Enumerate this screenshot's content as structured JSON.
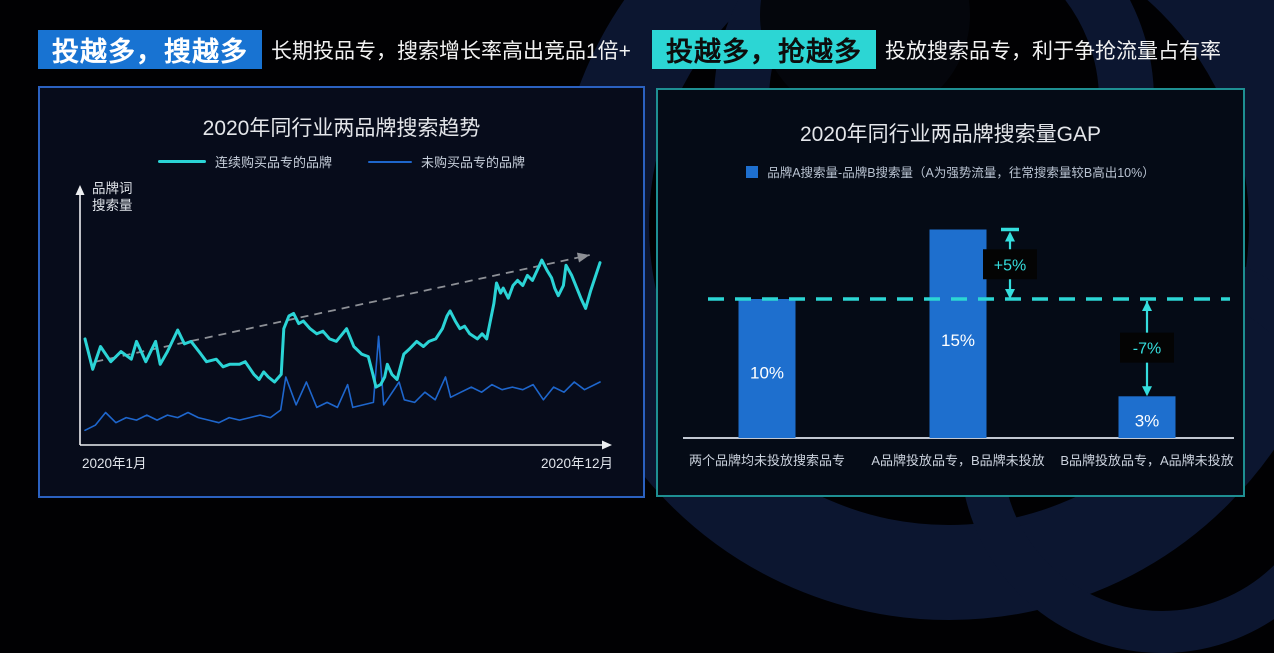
{
  "headers": {
    "left": {
      "badge": "投越多，搜越多",
      "badge_bg": "#1873d2",
      "badge_color": "#ffffff",
      "desc": "长期投品专，搜索增长率高出竞品1倍+"
    },
    "right": {
      "badge": "投越多，抢越多",
      "badge_bg": "#2cd6d4",
      "badge_color": "#0d0d0d",
      "desc": "投放搜索品专，利于争抢流量占有率"
    }
  },
  "chart_data": [
    {
      "type": "line",
      "title": "2020年同行业两品牌搜索趋势",
      "ylabel": "品牌词\n搜索量",
      "xlabel_start": "2020年1月",
      "xlabel_end": "2020年12月",
      "x_range": "2020年1月 — 2020年12月",
      "grid": false,
      "legend_position": "top",
      "series": [
        {
          "name": "连续购买品专的品牌",
          "color": "#2bd4d6",
          "width": 3,
          "points": [
            [
              0,
              41
            ],
            [
              1.5,
              29
            ],
            [
              3,
              38
            ],
            [
              5,
              32
            ],
            [
              7,
              36
            ],
            [
              9,
              33
            ],
            [
              10,
              40
            ],
            [
              11.8,
              32
            ],
            [
              13.7,
              40
            ],
            [
              14.6,
              31
            ],
            [
              16,
              36
            ],
            [
              18,
              44.5
            ],
            [
              19.3,
              39
            ],
            [
              20.6,
              40
            ],
            [
              22.5,
              35
            ],
            [
              23.6,
              32
            ],
            [
              25.5,
              33
            ],
            [
              26.8,
              30
            ],
            [
              28.1,
              31
            ],
            [
              30,
              31
            ],
            [
              31.1,
              32
            ],
            [
              32.8,
              27
            ],
            [
              33.8,
              25
            ],
            [
              34.7,
              28
            ],
            [
              35.6,
              26
            ],
            [
              36.8,
              24
            ],
            [
              38.1,
              27
            ],
            [
              38.6,
              45
            ],
            [
              39.6,
              50
            ],
            [
              40.5,
              51
            ],
            [
              41.5,
              47
            ],
            [
              42.4,
              48
            ],
            [
              43.7,
              45
            ],
            [
              45,
              43
            ],
            [
              46.2,
              44
            ],
            [
              47.5,
              41
            ],
            [
              48.8,
              40
            ],
            [
              50,
              43
            ],
            [
              50.8,
              45
            ],
            [
              52.2,
              38
            ],
            [
              53.7,
              35
            ],
            [
              55,
              34
            ],
            [
              55.9,
              27
            ],
            [
              56.5,
              22
            ],
            [
              57.4,
              23
            ],
            [
              58.2,
              26
            ],
            [
              58.7,
              31
            ],
            [
              59.6,
              27
            ],
            [
              60.6,
              25
            ],
            [
              61.9,
              35
            ],
            [
              63,
              37
            ],
            [
              64.4,
              40
            ],
            [
              65.7,
              38
            ],
            [
              66.8,
              40
            ],
            [
              68.1,
              41
            ],
            [
              69.4,
              45
            ],
            [
              70.3,
              50
            ],
            [
              70.9,
              52
            ],
            [
              71.9,
              48
            ],
            [
              72.8,
              45
            ],
            [
              73.7,
              46
            ],
            [
              74.7,
              43
            ],
            [
              76.2,
              41
            ],
            [
              77.1,
              43
            ],
            [
              78,
              41
            ],
            [
              79.4,
              55
            ],
            [
              79.9,
              63
            ],
            [
              80.7,
              59
            ],
            [
              81.2,
              61
            ],
            [
              82.2,
              57
            ],
            [
              83.1,
              62
            ],
            [
              84,
              64
            ],
            [
              85,
              62
            ],
            [
              85.9,
              66
            ],
            [
              86.9,
              64
            ],
            [
              87.8,
              68
            ],
            [
              88.7,
              72
            ],
            [
              89.7,
              68
            ],
            [
              90.6,
              65
            ],
            [
              91.2,
              61
            ],
            [
              91.9,
              58
            ],
            [
              92.9,
              62
            ],
            [
              93.4,
              70
            ],
            [
              94.5,
              66
            ],
            [
              95.5,
              61
            ],
            [
              96.3,
              57
            ],
            [
              97.2,
              53
            ],
            [
              98.2,
              60
            ],
            [
              100,
              71
            ]
          ]
        },
        {
          "name": "未购买品专的品牌",
          "color": "#1e66cc",
          "width": 1.6,
          "points": [
            [
              0,
              5
            ],
            [
              2,
              7
            ],
            [
              4,
              12
            ],
            [
              6,
              8
            ],
            [
              8,
              10
            ],
            [
              10,
              9
            ],
            [
              12,
              11
            ],
            [
              14,
              9
            ],
            [
              16,
              11
            ],
            [
              18,
              10
            ],
            [
              20,
              12
            ],
            [
              22,
              10
            ],
            [
              24,
              9
            ],
            [
              26,
              8
            ],
            [
              28,
              10
            ],
            [
              30,
              9
            ],
            [
              32,
              10
            ],
            [
              34,
              11
            ],
            [
              36,
              10
            ],
            [
              38,
              13
            ],
            [
              39,
              26
            ],
            [
              41,
              15
            ],
            [
              43,
              24
            ],
            [
              45,
              14
            ],
            [
              47,
              16
            ],
            [
              49,
              14
            ],
            [
              51,
              23
            ],
            [
              52,
              14
            ],
            [
              54,
              15
            ],
            [
              56,
              16
            ],
            [
              57,
              42
            ],
            [
              58,
              15
            ],
            [
              59,
              18
            ],
            [
              61,
              24
            ],
            [
              62,
              17
            ],
            [
              64,
              16
            ],
            [
              66,
              20
            ],
            [
              68,
              17
            ],
            [
              70,
              26
            ],
            [
              71,
              18
            ],
            [
              73,
              20
            ],
            [
              75,
              22
            ],
            [
              77,
              20
            ],
            [
              79,
              23
            ],
            [
              81,
              21
            ],
            [
              83,
              22
            ],
            [
              85,
              21
            ],
            [
              87,
              23
            ],
            [
              89,
              17
            ],
            [
              91,
              22
            ],
            [
              93,
              20
            ],
            [
              95,
              24
            ],
            [
              97,
              21
            ],
            [
              100,
              24
            ]
          ]
        }
      ],
      "trend_arrow": {
        "from": [
          2,
          32
        ],
        "to": [
          98,
          74
        ],
        "color": "#8d9096",
        "style": "dashed"
      }
    },
    {
      "type": "bar",
      "title": "2020年同行业两品牌搜索量GAP",
      "legend": "品牌A搜索量-品牌B搜索量（A为强势流量，往常搜索量较B高出10%）",
      "categories": [
        "两个品牌均未投放搜索品专",
        "A品牌投放品专，B品牌未投放",
        "B品牌投放品专，A品牌未投放"
      ],
      "values": [
        10,
        15,
        3
      ],
      "labels": [
        "10%",
        "15%",
        "3%"
      ],
      "bar_color": "#1e6fce",
      "value_label_color": "#ffffff",
      "ylim": [
        0,
        17
      ],
      "grid": false,
      "reference_line": {
        "value": 10,
        "style": "dashed",
        "color": "#2cd6d4"
      },
      "annotations": [
        {
          "label": "+5%",
          "bar": 1,
          "dx": 52,
          "from": 15,
          "to": 10,
          "cap": true,
          "color": "#35dede",
          "box_bg": "#040404"
        },
        {
          "label": "-7%",
          "bar": 2,
          "dx": 0,
          "from": 10,
          "to": 3,
          "cap": false,
          "color": "#35dede",
          "box_bg": "#040404"
        }
      ]
    }
  ]
}
